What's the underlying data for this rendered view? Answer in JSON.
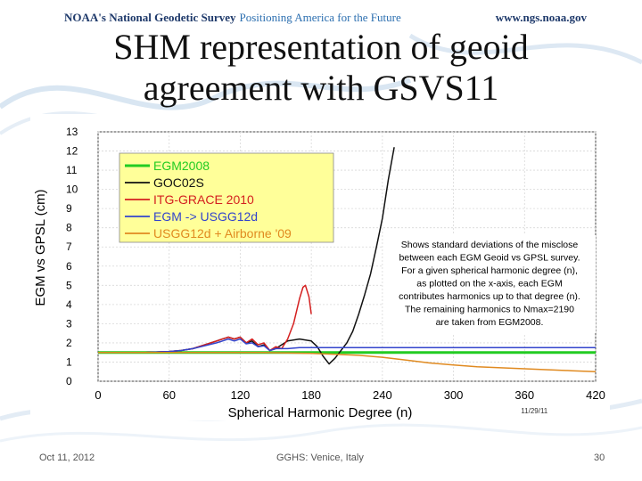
{
  "banner": {
    "org": "NOAA's National Geodetic Survey",
    "tagline": "Positioning America for the Future",
    "url": "www.ngs.noaa.gov"
  },
  "slide": {
    "title_line1": "SHM representation of geoid",
    "title_line2": "agreement with GSVS11"
  },
  "footer": {
    "date": "Oct 11, 2012",
    "event": "GGHS: Venice, Italy",
    "page": "30"
  },
  "colors": {
    "banner_text": "#1f3a6b",
    "egm2008": "#22cc22",
    "goco02s": "#111111",
    "itg_grace": "#d42020",
    "egm_usgg12d": "#3344cc",
    "usgg12d_airborne": "#e08a20",
    "legend_bg": "#ffff99"
  },
  "chart_data": {
    "type": "line",
    "xlabel": "Spherical Harmonic Degree (n)",
    "ylabel": "EGM vs GPSL (cm)",
    "xlim": [
      0,
      420
    ],
    "ylim": [
      0,
      13
    ],
    "xticks": [
      "0",
      "60",
      "120",
      "180",
      "240",
      "300",
      "360",
      "420"
    ],
    "yticks": [
      "0",
      "1",
      "2",
      "3",
      "4",
      "5",
      "6",
      "7",
      "8",
      "9",
      "10",
      "11",
      "12",
      "13"
    ],
    "grid": true,
    "legend_position": "top-left",
    "stamp": "11/29/11",
    "annotation": [
      "Shows standard deviations of the misclose",
      "between each EGM Geoid vs GPSL survey.",
      "For a given spherical harmonic degree (n),",
      "as plotted on the x-axis, each EGM",
      "contributes harmonics up to that degree (n).",
      "The remaining harmonics to Nmax=2190",
      "are taken from EGM2008."
    ],
    "series": [
      {
        "name": "EGM2008",
        "color": "#22cc22",
        "x": [
          0,
          420
        ],
        "y": [
          1.5,
          1.5
        ]
      },
      {
        "name": "GOC02S",
        "color": "#111111",
        "x": [
          0,
          40,
          60,
          70,
          80,
          90,
          100,
          105,
          110,
          115,
          120,
          125,
          130,
          135,
          140,
          145,
          150,
          160,
          170,
          180,
          185,
          190,
          195,
          200,
          205,
          210,
          215,
          220,
          225,
          230,
          235,
          240,
          245,
          250
        ],
        "y": [
          1.5,
          1.5,
          1.55,
          1.6,
          1.7,
          1.9,
          2.1,
          2.2,
          2.3,
          2.2,
          2.3,
          2.0,
          2.1,
          1.8,
          1.9,
          1.6,
          1.7,
          2.1,
          2.2,
          2.1,
          1.8,
          1.3,
          0.9,
          1.2,
          1.6,
          2.0,
          2.6,
          3.5,
          4.5,
          5.6,
          7.0,
          8.5,
          10.5,
          12.2
        ]
      },
      {
        "name": "ITG-GRACE 2010",
        "color": "#d42020",
        "x": [
          0,
          40,
          60,
          70,
          80,
          90,
          100,
          105,
          110,
          115,
          120,
          125,
          130,
          135,
          140,
          145,
          150,
          155,
          160,
          165,
          170,
          173,
          175,
          178,
          180
        ],
        "y": [
          1.5,
          1.5,
          1.55,
          1.6,
          1.7,
          1.9,
          2.1,
          2.2,
          2.3,
          2.2,
          2.3,
          2.0,
          2.2,
          1.9,
          2.0,
          1.6,
          1.8,
          1.7,
          2.2,
          3.0,
          4.3,
          4.9,
          5.0,
          4.4,
          3.5
        ]
      },
      {
        "name": "EGM -> USGG12d",
        "color": "#3344cc",
        "x": [
          0,
          40,
          60,
          70,
          80,
          90,
          100,
          105,
          110,
          115,
          120,
          125,
          130,
          135,
          140,
          145,
          150,
          160,
          170,
          180,
          190,
          200,
          420
        ],
        "y": [
          1.5,
          1.5,
          1.55,
          1.6,
          1.7,
          1.85,
          2.0,
          2.1,
          2.2,
          2.1,
          2.2,
          1.95,
          2.0,
          1.8,
          1.85,
          1.6,
          1.7,
          1.7,
          1.75,
          1.75,
          1.75,
          1.75,
          1.75
        ]
      },
      {
        "name": "USGG12d + Airborne '09",
        "color": "#e08a20",
        "x": [
          0,
          60,
          100,
          140,
          180,
          200,
          220,
          240,
          260,
          280,
          300,
          320,
          340,
          360,
          380,
          400,
          420
        ],
        "y": [
          1.5,
          1.5,
          1.5,
          1.5,
          1.45,
          1.4,
          1.35,
          1.25,
          1.1,
          0.95,
          0.85,
          0.75,
          0.7,
          0.65,
          0.6,
          0.55,
          0.5
        ]
      }
    ]
  }
}
